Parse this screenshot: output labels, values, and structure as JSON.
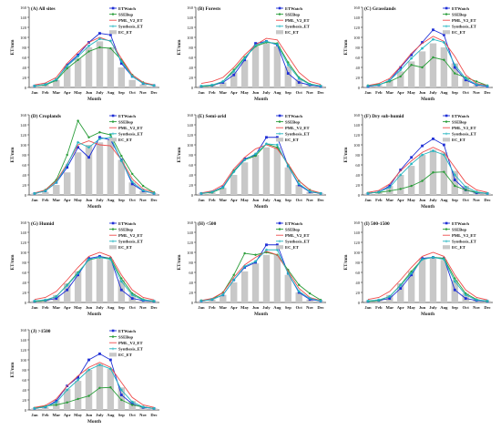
{
  "figure": {
    "colors": {
      "ETWatch": "#1f2fd6",
      "SSEBop": "#2a9d3a",
      "PML_V2_ET": "#ef4b4b",
      "Synthesis_ET": "#22b5c0",
      "EC_ET": "#c8c8c8"
    },
    "common": {
      "categories": [
        "Jan",
        "Feb",
        "Mar",
        "Apr",
        "May",
        "Jun",
        "July",
        "Aug",
        "Sep",
        "Oct",
        "Nov",
        "Dec"
      ],
      "xlabel": "Month",
      "ylabel": "ET/mm",
      "ylim": [
        0,
        160
      ],
      "yticks": [
        0,
        20,
        40,
        60,
        80,
        100,
        120,
        140,
        160
      ],
      "legend_position": "top-right"
    }
  },
  "chart_data": [
    {
      "type": "bar+line",
      "title": "(A) All sites",
      "series": [
        {
          "name": "EC_ET",
          "type": "bar",
          "values": [
            3,
            6,
            15,
            42,
            58,
            80,
            92,
            80,
            40,
            15,
            6,
            3
          ]
        },
        {
          "name": "ETWatch",
          "type": "line",
          "values": [
            3,
            6,
            15,
            45,
            65,
            90,
            108,
            105,
            48,
            22,
            8,
            4
          ]
        },
        {
          "name": "SSEBop",
          "type": "line",
          "values": [
            3,
            5,
            14,
            38,
            55,
            72,
            80,
            78,
            55,
            25,
            10,
            4
          ]
        },
        {
          "name": "PML_V2_ET",
          "type": "line",
          "values": [
            5,
            9,
            20,
            48,
            70,
            90,
            100,
            92,
            58,
            25,
            10,
            5
          ]
        },
        {
          "name": "Synthesis_ET",
          "type": "line",
          "values": [
            3,
            6,
            16,
            43,
            62,
            83,
            97,
            93,
            52,
            22,
            8,
            4
          ]
        }
      ]
    },
    {
      "type": "bar+line",
      "title": "(B) Forests",
      "series": [
        {
          "name": "EC_ET",
          "type": "bar",
          "values": [
            3,
            5,
            10,
            30,
            55,
            82,
            88,
            82,
            42,
            16,
            6,
            3
          ]
        },
        {
          "name": "ETWatch",
          "type": "line",
          "values": [
            2,
            4,
            10,
            25,
            55,
            88,
            92,
            85,
            28,
            10,
            5,
            2
          ]
        },
        {
          "name": "SSEBop",
          "type": "line",
          "values": [
            2,
            4,
            12,
            35,
            60,
            82,
            90,
            88,
            50,
            20,
            7,
            3
          ]
        },
        {
          "name": "PML_V2_ET",
          "type": "line",
          "values": [
            8,
            12,
            20,
            40,
            65,
            85,
            98,
            95,
            62,
            30,
            12,
            6
          ]
        },
        {
          "name": "Synthesis_ET",
          "type": "line",
          "values": [
            3,
            5,
            12,
            32,
            58,
            84,
            92,
            86,
            45,
            18,
            6,
            3
          ]
        }
      ]
    },
    {
      "type": "bar+line",
      "title": "(C) Grasslands",
      "series": [
        {
          "name": "EC_ET",
          "type": "bar",
          "values": [
            2,
            5,
            14,
            32,
            52,
            72,
            88,
            80,
            48,
            18,
            5,
            2
          ]
        },
        {
          "name": "ETWatch",
          "type": "line",
          "values": [
            2,
            5,
            14,
            40,
            65,
            90,
            115,
            105,
            40,
            15,
            5,
            2
          ]
        },
        {
          "name": "SSEBop",
          "type": "line",
          "values": [
            4,
            6,
            12,
            22,
            45,
            40,
            60,
            55,
            28,
            20,
            12,
            4
          ]
        },
        {
          "name": "PML_V2_ET",
          "type": "line",
          "values": [
            4,
            8,
            18,
            42,
            68,
            88,
            102,
            92,
            62,
            25,
            8,
            4
          ]
        },
        {
          "name": "Synthesis_ET",
          "type": "line",
          "values": [
            3,
            5,
            14,
            35,
            58,
            78,
            96,
            90,
            45,
            18,
            6,
            3
          ]
        }
      ]
    },
    {
      "type": "bar+line",
      "title": "(D) Croplands",
      "series": [
        {
          "name": "EC_ET",
          "type": "bar",
          "values": [
            3,
            6,
            20,
            45,
            85,
            100,
            105,
            110,
            70,
            25,
            8,
            3
          ]
        },
        {
          "name": "ETWatch",
          "type": "line",
          "values": [
            3,
            8,
            25,
            55,
            95,
            75,
            115,
            110,
            70,
            22,
            8,
            3
          ]
        },
        {
          "name": "SSEBop",
          "type": "line",
          "values": [
            3,
            10,
            30,
            80,
            148,
            115,
            125,
            120,
            78,
            42,
            18,
            5
          ]
        },
        {
          "name": "PML_V2_ET",
          "type": "line",
          "values": [
            4,
            10,
            28,
            62,
            100,
            108,
            100,
            98,
            70,
            32,
            12,
            5
          ]
        },
        {
          "name": "Synthesis_ET",
          "type": "line",
          "values": [
            3,
            8,
            25,
            60,
            105,
            95,
            112,
            115,
            68,
            26,
            9,
            3
          ]
        }
      ]
    },
    {
      "type": "bar+line",
      "title": "(E) Semi-arid",
      "series": [
        {
          "name": "EC_ET",
          "type": "bar",
          "values": [
            3,
            5,
            14,
            40,
            65,
            80,
            95,
            95,
            55,
            20,
            6,
            3
          ]
        },
        {
          "name": "ETWatch",
          "type": "line",
          "values": [
            3,
            6,
            16,
            48,
            72,
            80,
            115,
            115,
            58,
            20,
            6,
            3
          ]
        },
        {
          "name": "SSEBop",
          "type": "line",
          "values": [
            3,
            5,
            14,
            48,
            70,
            78,
            102,
            95,
            60,
            28,
            10,
            3
          ]
        },
        {
          "name": "PML_V2_ET",
          "type": "line",
          "values": [
            4,
            8,
            20,
            52,
            75,
            92,
            100,
            92,
            62,
            28,
            10,
            4
          ]
        },
        {
          "name": "Synthesis_ET",
          "type": "line",
          "values": [
            3,
            6,
            15,
            46,
            70,
            82,
            102,
            100,
            58,
            22,
            7,
            3
          ]
        }
      ]
    },
    {
      "type": "bar+line",
      "title": "(F) Dry sub-humid",
      "series": [
        {
          "name": "EC_ET",
          "type": "bar",
          "values": [
            3,
            6,
            18,
            40,
            58,
            80,
            90,
            85,
            48,
            18,
            6,
            3
          ]
        },
        {
          "name": "ETWatch",
          "type": "line",
          "values": [
            3,
            6,
            18,
            50,
            75,
            98,
            112,
            100,
            30,
            10,
            4,
            3
          ]
        },
        {
          "name": "SSEBop",
          "type": "line",
          "values": [
            4,
            5,
            8,
            12,
            18,
            28,
            45,
            46,
            18,
            10,
            5,
            3
          ]
        },
        {
          "name": "PML_V2_ET",
          "type": "line",
          "values": [
            5,
            9,
            22,
            48,
            68,
            85,
            95,
            85,
            55,
            25,
            10,
            5
          ]
        },
        {
          "name": "Synthesis_ET",
          "type": "line",
          "values": [
            3,
            6,
            15,
            40,
            62,
            80,
            88,
            80,
            40,
            16,
            6,
            3
          ]
        }
      ]
    },
    {
      "type": "bar+line",
      "title": "(G) Humid",
      "series": [
        {
          "name": "EC_ET",
          "type": "bar",
          "values": [
            3,
            6,
            15,
            38,
            62,
            88,
            88,
            85,
            45,
            18,
            6,
            3
          ]
        },
        {
          "name": "ETWatch",
          "type": "line",
          "values": [
            2,
            4,
            8,
            25,
            55,
            88,
            92,
            88,
            25,
            8,
            4,
            2
          ]
        },
        {
          "name": "SSEBop",
          "type": "line",
          "values": [
            2,
            4,
            12,
            35,
            60,
            85,
            90,
            88,
            48,
            18,
            6,
            2
          ]
        },
        {
          "name": "PML_V2_ET",
          "type": "line",
          "values": [
            6,
            10,
            22,
            45,
            70,
            92,
            100,
            92,
            55,
            25,
            10,
            5
          ]
        },
        {
          "name": "Synthesis_ET",
          "type": "line",
          "values": [
            3,
            5,
            12,
            34,
            58,
            86,
            90,
            86,
            42,
            15,
            5,
            3
          ]
        }
      ]
    },
    {
      "type": "bar+line",
      "title": "(H) <500",
      "series": [
        {
          "name": "EC_ET",
          "type": "bar",
          "values": [
            3,
            6,
            15,
            40,
            62,
            78,
            95,
            95,
            55,
            20,
            6,
            3
          ]
        },
        {
          "name": "ETWatch",
          "type": "line",
          "values": [
            3,
            6,
            15,
            45,
            70,
            80,
            115,
            115,
            58,
            20,
            6,
            3
          ]
        },
        {
          "name": "SSEBop",
          "type": "line",
          "values": [
            4,
            6,
            20,
            55,
            98,
            95,
            100,
            95,
            65,
            35,
            18,
            5
          ]
        },
        {
          "name": "PML_V2_ET",
          "type": "line",
          "values": [
            4,
            8,
            20,
            50,
            75,
            90,
            102,
            95,
            62,
            28,
            10,
            4
          ]
        },
        {
          "name": "Synthesis_ET",
          "type": "line",
          "values": [
            3,
            6,
            15,
            45,
            72,
            82,
            105,
            105,
            58,
            22,
            8,
            3
          ]
        }
      ]
    },
    {
      "type": "bar+line",
      "title": "(I) 500-1500",
      "series": [
        {
          "name": "EC_ET",
          "type": "bar",
          "values": [
            3,
            6,
            15,
            38,
            62,
            88,
            88,
            85,
            45,
            18,
            6,
            3
          ]
        },
        {
          "name": "ETWatch",
          "type": "line",
          "values": [
            2,
            4,
            8,
            28,
            55,
            88,
            90,
            88,
            25,
            8,
            4,
            2
          ]
        },
        {
          "name": "SSEBop",
          "type": "line",
          "values": [
            2,
            4,
            12,
            35,
            62,
            86,
            90,
            88,
            48,
            18,
            6,
            2
          ]
        },
        {
          "name": "PML_V2_ET",
          "type": "line",
          "values": [
            6,
            10,
            22,
            45,
            70,
            92,
            100,
            92,
            55,
            25,
            10,
            5
          ]
        },
        {
          "name": "Synthesis_ET",
          "type": "line",
          "values": [
            3,
            5,
            12,
            34,
            58,
            86,
            90,
            86,
            42,
            15,
            5,
            3
          ]
        }
      ]
    },
    {
      "type": "bar+line",
      "title": "(J) >1500",
      "series": [
        {
          "name": "EC_ET",
          "type": "bar",
          "values": [
            3,
            6,
            18,
            42,
            58,
            80,
            92,
            82,
            45,
            18,
            6,
            3
          ]
        },
        {
          "name": "ETWatch",
          "type": "line",
          "values": [
            3,
            6,
            18,
            48,
            65,
            100,
            112,
            100,
            30,
            12,
            5,
            3
          ]
        },
        {
          "name": "SSEBop",
          "type": "line",
          "values": [
            4,
            8,
            10,
            15,
            22,
            28,
            44,
            45,
            20,
            10,
            6,
            3
          ]
        },
        {
          "name": "PML_V2_ET",
          "type": "line",
          "values": [
            5,
            9,
            22,
            48,
            68,
            85,
            95,
            85,
            55,
            25,
            10,
            5
          ]
        },
        {
          "name": "Synthesis_ET",
          "type": "line",
          "values": [
            3,
            6,
            15,
            40,
            60,
            80,
            90,
            82,
            40,
            16,
            6,
            3
          ]
        }
      ]
    }
  ]
}
